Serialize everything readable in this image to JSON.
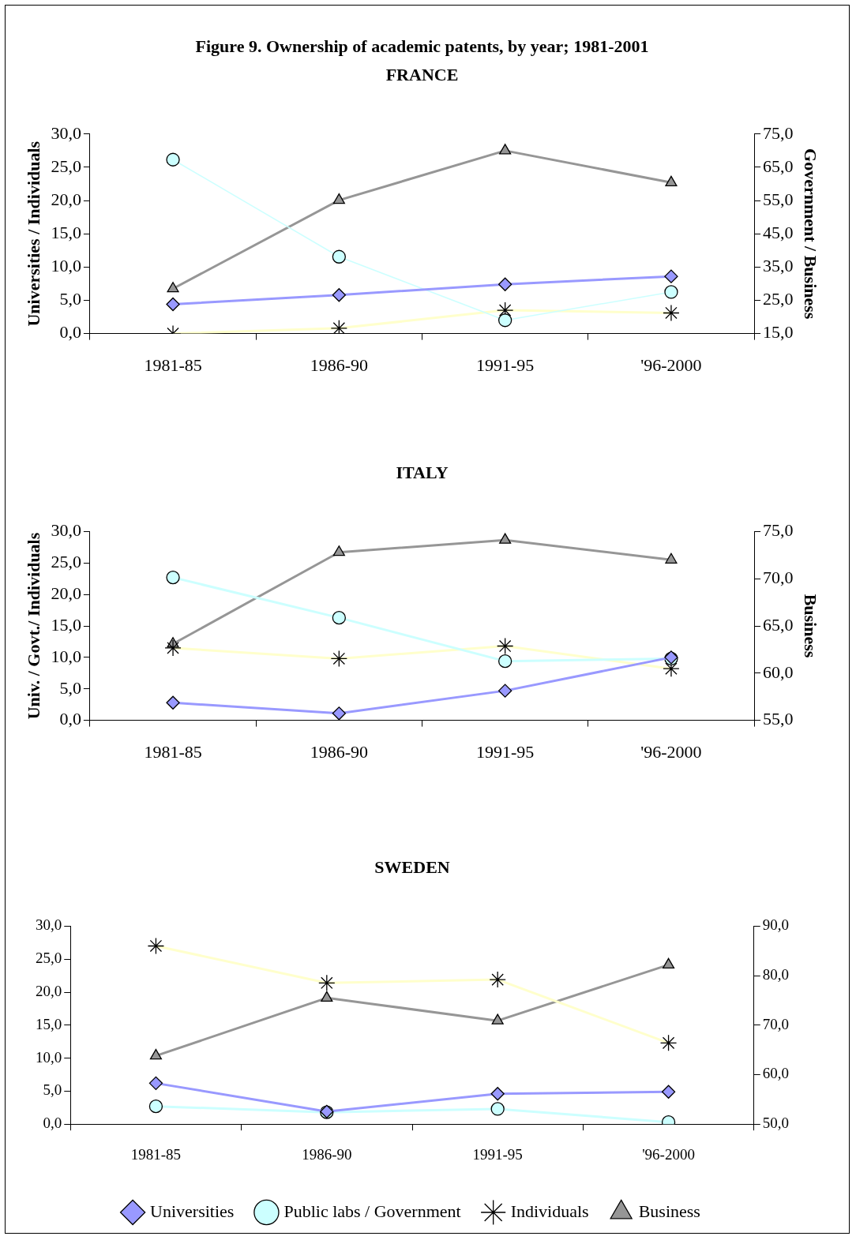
{
  "chart_data": [
    {
      "type": "line",
      "title": "Figure 9. Ownership of academic patents, by year; 1981-2001",
      "subtitle": "FRANCE",
      "ylabel": "Universities / Individuals",
      "y2label": "Government / Business",
      "categories": [
        "1981-85",
        "1986-90",
        "1991-95",
        "'96-2000"
      ],
      "series": [
        {
          "color": "#9999ff",
          "marker": "diamond",
          "values": [
            4.4,
            5.8,
            7.4,
            8.6
          ]
        },
        {
          "color": "#ccffff",
          "marker": "circle",
          "axis": "y2",
          "values": [
            67.3,
            38.1,
            19.0,
            27.5
          ]
        },
        {
          "color": "#ffffcc",
          "marker": "cross",
          "values": [
            0.0,
            0.8,
            3.5,
            3.1
          ]
        },
        {
          "color": "#969696",
          "marker": "triangle",
          "axis": "y2",
          "values": [
            28.5,
            55.1,
            70.0,
            60.4
          ]
        }
      ],
      "ylim": [
        0,
        30
      ],
      "yticks": [
        {
          "value": 0,
          "label": "0,0"
        },
        {
          "value": 5,
          "label": "5,0"
        },
        {
          "value": 10,
          "label": "10,0"
        },
        {
          "value": 15,
          "label": "15,0"
        },
        {
          "value": 20,
          "label": "20,0"
        },
        {
          "value": 25,
          "label": "25,0"
        },
        {
          "value": 30,
          "label": "30,0"
        }
      ],
      "y2lim": [
        15,
        75
      ],
      "y2ticks": [
        {
          "value": 15,
          "label": "15,0"
        },
        {
          "value": 25,
          "label": "25,0"
        },
        {
          "value": 35,
          "label": "35,0"
        },
        {
          "value": 45,
          "label": "45,0"
        },
        {
          "value": 55,
          "label": "55,0"
        },
        {
          "value": 65,
          "label": "65,0"
        },
        {
          "value": 75,
          "label": "75,0"
        }
      ],
      "grid": false,
      "legend": false
    },
    {
      "type": "line",
      "title": "ITALY",
      "ylabel": "Univ. / Govt./ Individuals",
      "y2label": "Business",
      "categories": [
        "1981-85",
        "1986-90",
        "1991-95",
        "'96-2000"
      ],
      "series": [
        {
          "color": "#9999ff",
          "marker": "diamond",
          "values": [
            2.8,
            1.1,
            4.7,
            10.0
          ]
        },
        {
          "color": "#ccffff",
          "marker": "circle",
          "values": [
            22.7,
            16.3,
            9.4,
            9.8
          ]
        },
        {
          "color": "#ffffcc",
          "marker": "cross",
          "values": [
            11.5,
            9.8,
            11.8,
            8.2
          ]
        },
        {
          "color": "#969696",
          "marker": "triangle",
          "axis": "y2",
          "values": [
            63.1,
            72.8,
            74.1,
            72.0
          ]
        }
      ],
      "ylim": [
        0,
        30
      ],
      "yticks": [
        {
          "value": 0,
          "label": "0,0"
        },
        {
          "value": 5,
          "label": "5,0"
        },
        {
          "value": 10,
          "label": "10,0"
        },
        {
          "value": 15,
          "label": "15,0"
        },
        {
          "value": 20,
          "label": "20,0"
        },
        {
          "value": 25,
          "label": "25,0"
        },
        {
          "value": 30,
          "label": "30,0"
        }
      ],
      "y2lim": [
        55,
        75
      ],
      "y2ticks": [
        {
          "value": 55,
          "label": "55,0"
        },
        {
          "value": 60,
          "label": "60,0"
        },
        {
          "value": 65,
          "label": "65,0"
        },
        {
          "value": 70,
          "label": "70,0"
        },
        {
          "value": 75,
          "label": "75,0"
        }
      ],
      "grid": false,
      "legend": false
    },
    {
      "type": "line",
      "title": "SWEDEN",
      "categories": [
        "1981-85",
        "1986-90",
        "1991-95",
        "'96-2000"
      ],
      "series": [
        {
          "name": "Universities",
          "color": "#9999ff",
          "marker": "diamond",
          "values": [
            6.2,
            1.9,
            4.6,
            4.9
          ]
        },
        {
          "name": "Public labs / Government",
          "color": "#ccffff",
          "marker": "circle",
          "values": [
            2.7,
            1.8,
            2.3,
            0.3
          ]
        },
        {
          "name": "Individuals",
          "color": "#ffffcc",
          "marker": "cross",
          "values": [
            27.0,
            21.4,
            21.9,
            12.3
          ]
        },
        {
          "name": "Business",
          "color": "#969696",
          "marker": "triangle",
          "axis": "y2",
          "values": [
            63.8,
            75.5,
            70.9,
            82.2
          ]
        }
      ],
      "ylim": [
        0,
        30
      ],
      "yticks": [
        {
          "value": 0,
          "label": "0,0"
        },
        {
          "value": 5,
          "label": "5,0"
        },
        {
          "value": 10,
          "label": "10,0"
        },
        {
          "value": 15,
          "label": "15,0"
        },
        {
          "value": 20,
          "label": "20,0"
        },
        {
          "value": 25,
          "label": "25,0"
        },
        {
          "value": 30,
          "label": "30,0"
        }
      ],
      "y2lim": [
        50,
        90
      ],
      "y2ticks": [
        {
          "value": 50,
          "label": "50,0"
        },
        {
          "value": 60,
          "label": "60,0"
        },
        {
          "value": 70,
          "label": "70,0"
        },
        {
          "value": 80,
          "label": "80,0"
        },
        {
          "value": 90,
          "label": "90,0"
        }
      ],
      "grid": false,
      "legend": "bottom"
    }
  ]
}
